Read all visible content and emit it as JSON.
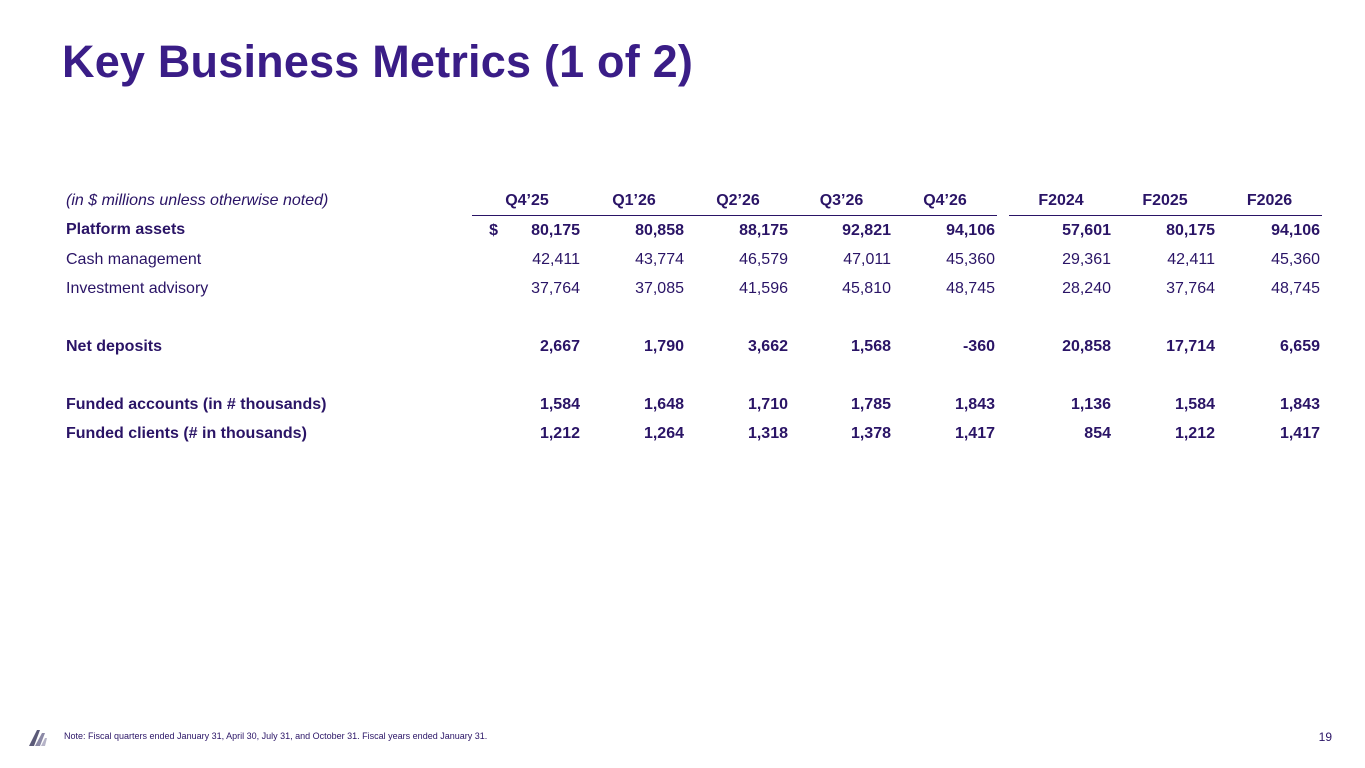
{
  "title": "Key Business Metrics (1 of 2)",
  "table": {
    "unit_note": "(in $ millions unless otherwise noted)",
    "quarters": [
      "Q4’25",
      "Q1’26",
      "Q2’26",
      "Q3’26",
      "Q4’26"
    ],
    "years": [
      "F2024",
      "F2025",
      "F2026"
    ],
    "rows": {
      "platform_assets": {
        "label": "Platform assets",
        "currency": "$",
        "q": [
          "80,175",
          "80,858",
          "88,175",
          "92,821",
          "94,106"
        ],
        "y": [
          "57,601",
          "80,175",
          "94,106"
        ]
      },
      "cash_management": {
        "label": "Cash management",
        "q": [
          "42,411",
          "43,774",
          "46,579",
          "47,011",
          "45,360"
        ],
        "y": [
          "29,361",
          "42,411",
          "45,360"
        ]
      },
      "investment_advisory": {
        "label": "Investment advisory",
        "q": [
          "37,764",
          "37,085",
          "41,596",
          "45,810",
          "48,745"
        ],
        "y": [
          "28,240",
          "37,764",
          "48,745"
        ]
      },
      "net_deposits": {
        "label": "Net deposits",
        "q": [
          "2,667",
          "1,790",
          "3,662",
          "1,568",
          "-360"
        ],
        "y": [
          "20,858",
          "17,714",
          "6,659"
        ]
      },
      "funded_accounts": {
        "label": "Funded accounts (in # thousands)",
        "q": [
          "1,584",
          "1,648",
          "1,710",
          "1,785",
          "1,843"
        ],
        "y": [
          "1,136",
          "1,584",
          "1,843"
        ]
      },
      "funded_clients": {
        "label": "Funded clients (# in thousands)",
        "q": [
          "1,212",
          "1,264",
          "1,318",
          "1,378",
          "1,417"
        ],
        "y": [
          "854",
          "1,212",
          "1,417"
        ]
      }
    }
  },
  "footer": {
    "note": "Note: Fiscal quarters ended January 31, April 30, July 31, and October 31. Fiscal years ended January 31.",
    "page_number": "19"
  }
}
